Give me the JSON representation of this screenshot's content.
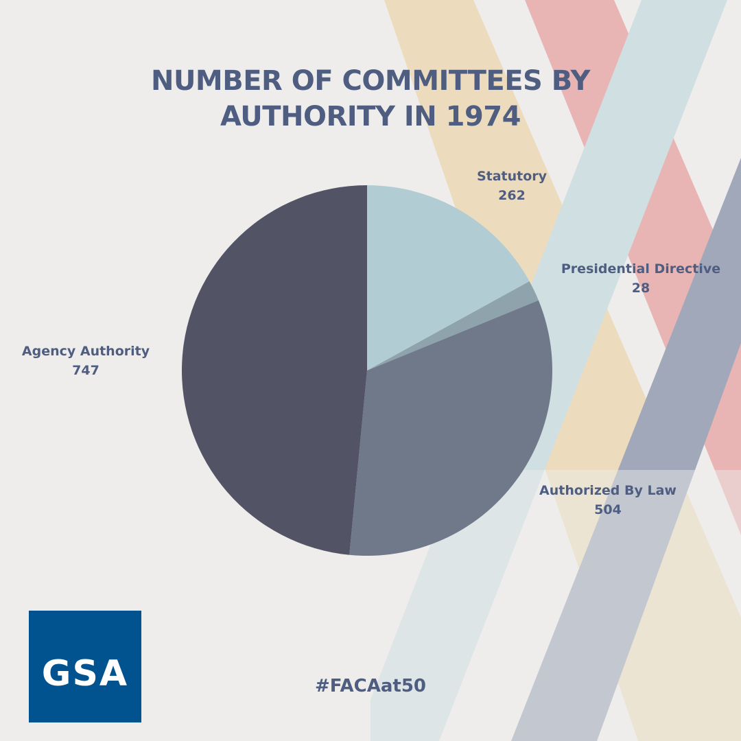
{
  "title_line1": "NUMBER OF COMMITTEES BY",
  "title_line2": "AUTHORITY IN 1974",
  "hashtag": "#FACAat50",
  "logo_text": "GSA",
  "colors": {
    "text": "#4e5d80",
    "logo_bg": "#00538f"
  },
  "chart_data": {
    "type": "pie",
    "title": "NUMBER OF COMMITTEES BY AUTHORITY IN 1974",
    "start": "top, clockwise",
    "slices": [
      {
        "label": "Statutory",
        "value": 262,
        "color": "#b1cdd3"
      },
      {
        "label": "Presidential Directive",
        "value": 28,
        "color": "#8fa3ad"
      },
      {
        "label": "Authorized By Law",
        "value": 504,
        "color": "#6f798a"
      },
      {
        "label": "Agency Authority",
        "value": 747,
        "color": "#525466"
      }
    ]
  }
}
